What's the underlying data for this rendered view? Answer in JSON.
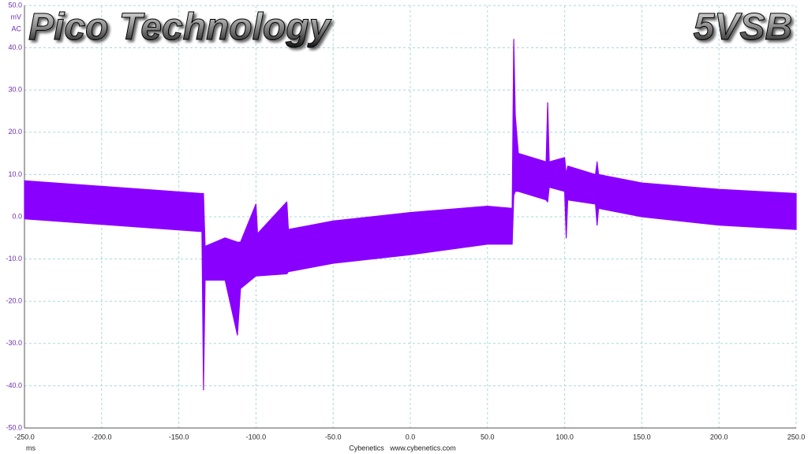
{
  "chart_data": {
    "type": "range",
    "title": "Pico Technology",
    "subtitle": "5VSB",
    "y_unit": "mV",
    "y_coupling": "AC",
    "x_unit": "ms",
    "footer": "Cybenetics   www.cybenetics.com",
    "color": "#8a00ff",
    "grid": true,
    "xlim": [
      -250,
      250
    ],
    "ylim": [
      -50,
      50
    ],
    "xticks": [
      {
        "value": -250,
        "label": "-250.0"
      },
      {
        "value": -200,
        "label": "-200.0"
      },
      {
        "value": -150,
        "label": "-150.0"
      },
      {
        "value": -100,
        "label": "-100.0"
      },
      {
        "value": -50,
        "label": "-50.0"
      },
      {
        "value": 0,
        "label": "0.0"
      },
      {
        "value": 50,
        "label": "50.0"
      },
      {
        "value": 100,
        "label": "100.0"
      },
      {
        "value": 150,
        "label": "150.0"
      },
      {
        "value": 200,
        "label": "200.0"
      },
      {
        "value": 250,
        "label": "250.0"
      }
    ],
    "yticks": [
      {
        "value": -50,
        "label": "-50.0"
      },
      {
        "value": -40,
        "label": "-40.0"
      },
      {
        "value": -30,
        "label": "-30.0"
      },
      {
        "value": -20,
        "label": "-20.0"
      },
      {
        "value": -10,
        "label": "-10.0"
      },
      {
        "value": 0,
        "label": "0.0"
      },
      {
        "value": 10,
        "label": "10.0"
      },
      {
        "value": 20,
        "label": "20.0"
      },
      {
        "value": 30,
        "label": "30.0"
      },
      {
        "value": 40,
        "label": "40.0"
      },
      {
        "value": 50,
        "label": "50.0"
      }
    ],
    "x": [
      -250,
      -135,
      -134,
      -133,
      -120,
      -112,
      -110,
      -100,
      -99,
      -80,
      -79,
      -50,
      0,
      50,
      66,
      67,
      68,
      70,
      88,
      89,
      90,
      100,
      101,
      102,
      120,
      121,
      122,
      150,
      200,
      250
    ],
    "high": [
      8.5,
      5.5,
      5.5,
      -7,
      -5,
      -6,
      -6,
      3,
      -4,
      3.5,
      -3,
      -1,
      1,
      2.5,
      2,
      42,
      24,
      15,
      13,
      27,
      13,
      14,
      10,
      12,
      10,
      13,
      10,
      8,
      6.5,
      5.5
    ],
    "low": [
      -0.5,
      -3.5,
      -41,
      -15,
      -15,
      -28,
      -17,
      -14,
      -14,
      -13.5,
      -13,
      -11,
      -9,
      -6.5,
      -6.5,
      5,
      6,
      6,
      4,
      3.5,
      7,
      6,
      -5,
      4,
      3,
      -2,
      2,
      0,
      -2,
      -3
    ]
  }
}
